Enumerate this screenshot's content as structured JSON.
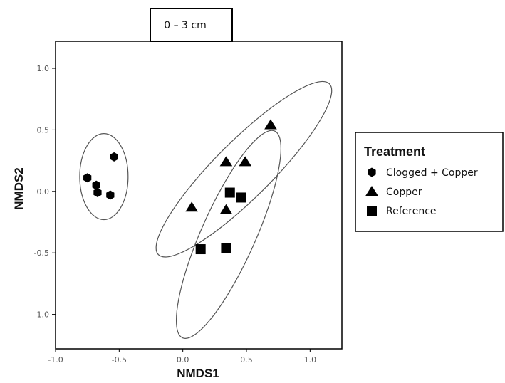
{
  "chart_data": {
    "type": "scatter",
    "title": "0 – 3 cm",
    "xlabel": "NMDS1",
    "ylabel": "NMDS2",
    "xlim": [
      -1.0,
      1.25
    ],
    "ylim": [
      -1.28,
      1.22
    ],
    "x_ticks": [
      -1.0,
      -0.5,
      0.0,
      0.5,
      1.0
    ],
    "x_tick_labels": [
      "-1.0",
      "-0.5",
      "0.0",
      "0.5",
      "1.0"
    ],
    "y_ticks": [
      1.0,
      0.5,
      0.0,
      -0.5,
      -1.0
    ],
    "y_tick_labels": [
      "1.0",
      "0.5",
      "0.0",
      "-0.5",
      "-1.0"
    ],
    "grid": false,
    "legend": {
      "title": "Treatment",
      "placement": "right"
    },
    "series": [
      {
        "name": "Clogged + Copper",
        "marker": "circle",
        "x": [
          -0.75,
          -0.68,
          -0.67,
          -0.57,
          -0.54
        ],
        "y": [
          0.11,
          0.05,
          -0.01,
          -0.03,
          0.28
        ]
      },
      {
        "name": "Copper",
        "marker": "triangle",
        "x": [
          0.07,
          0.34,
          0.34,
          0.49,
          0.69
        ],
        "y": [
          -0.13,
          -0.15,
          0.24,
          0.24,
          0.54
        ]
      },
      {
        "name": "Reference",
        "marker": "square",
        "x": [
          0.14,
          0.34,
          0.37,
          0.46
        ],
        "y": [
          -0.47,
          -0.46,
          -0.01,
          -0.05
        ]
      }
    ],
    "ellipses": [
      {
        "group": "Clogged + Copper",
        "cx": -0.62,
        "cy": 0.12,
        "rx": 0.19,
        "ry": 0.35,
        "angle": 0
      },
      {
        "group": "Copper",
        "cx": 0.48,
        "cy": 0.18,
        "rx": 0.95,
        "ry": 0.23,
        "angle": -45
      },
      {
        "group": "Reference",
        "cx": 0.36,
        "cy": -0.35,
        "rx": 0.89,
        "ry": 0.22,
        "angle": -66
      }
    ],
    "color": "#000000",
    "ellipse_color": "#555555"
  }
}
